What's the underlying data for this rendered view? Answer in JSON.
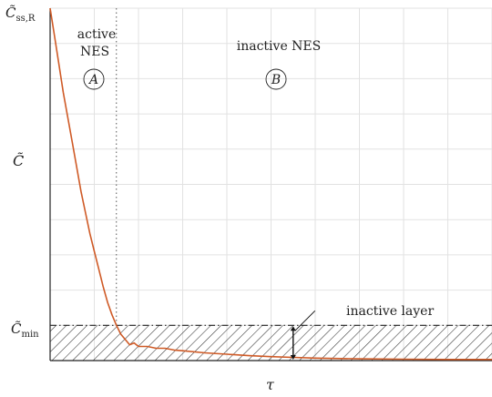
{
  "chart_data": {
    "type": "line",
    "xlabel": "τ",
    "ylabel": {
      "base": "C̃",
      "sub": ""
    },
    "y_ticks": [
      {
        "id": "c-ss-r",
        "base": "C̃",
        "sub": "ss,R",
        "value": 1.0
      },
      {
        "id": "c-min",
        "base": "C̃",
        "sub": "min",
        "value": 0.1
      }
    ],
    "xlim": [
      0,
      10
    ],
    "ylim": [
      0,
      1.0
    ],
    "grid": true,
    "grid_x": [
      0,
      1,
      2,
      3,
      4,
      5,
      6,
      7,
      8,
      9,
      10
    ],
    "grid_y": [
      0,
      0.1,
      0.2,
      0.3,
      0.4,
      0.5,
      0.6,
      0.7,
      0.8,
      0.9,
      1.0
    ],
    "boundary_tau": 1.5,
    "c_min": 0.1,
    "inactive_layer_tau": 5.5,
    "series": [
      {
        "color": "#cf5a26",
        "x": [
          0,
          0.1,
          0.2,
          0.3,
          0.4,
          0.5,
          0.6,
          0.7,
          0.8,
          0.9,
          1.0,
          1.1,
          1.2,
          1.3,
          1.4,
          1.5,
          1.6,
          1.7,
          1.8,
          1.9,
          2.0,
          2.2,
          2.4,
          2.6,
          2.8,
          3.0,
          3.5,
          4.0,
          4.5,
          5.0,
          5.5,
          6.0,
          7.0,
          8.0,
          9.0,
          10.0
        ],
        "y": [
          1.0,
          0.92,
          0.84,
          0.76,
          0.69,
          0.62,
          0.55,
          0.48,
          0.42,
          0.36,
          0.31,
          0.26,
          0.21,
          0.165,
          0.13,
          0.1,
          0.075,
          0.06,
          0.045,
          0.05,
          0.04,
          0.04,
          0.035,
          0.035,
          0.03,
          0.028,
          0.022,
          0.018,
          0.014,
          0.011,
          0.009,
          0.007,
          0.005,
          0.004,
          0.003,
          0.003
        ]
      }
    ],
    "regions": [
      {
        "id": "A",
        "label_lines": [
          "active",
          "NES"
        ],
        "marker": "A",
        "tau": 0.9
      },
      {
        "id": "B",
        "label_lines": [
          "inactive NES"
        ],
        "marker": "B",
        "tau": 4.7
      }
    ],
    "annotations": [
      {
        "id": "inactive-layer",
        "text": "inactive layer"
      }
    ]
  }
}
